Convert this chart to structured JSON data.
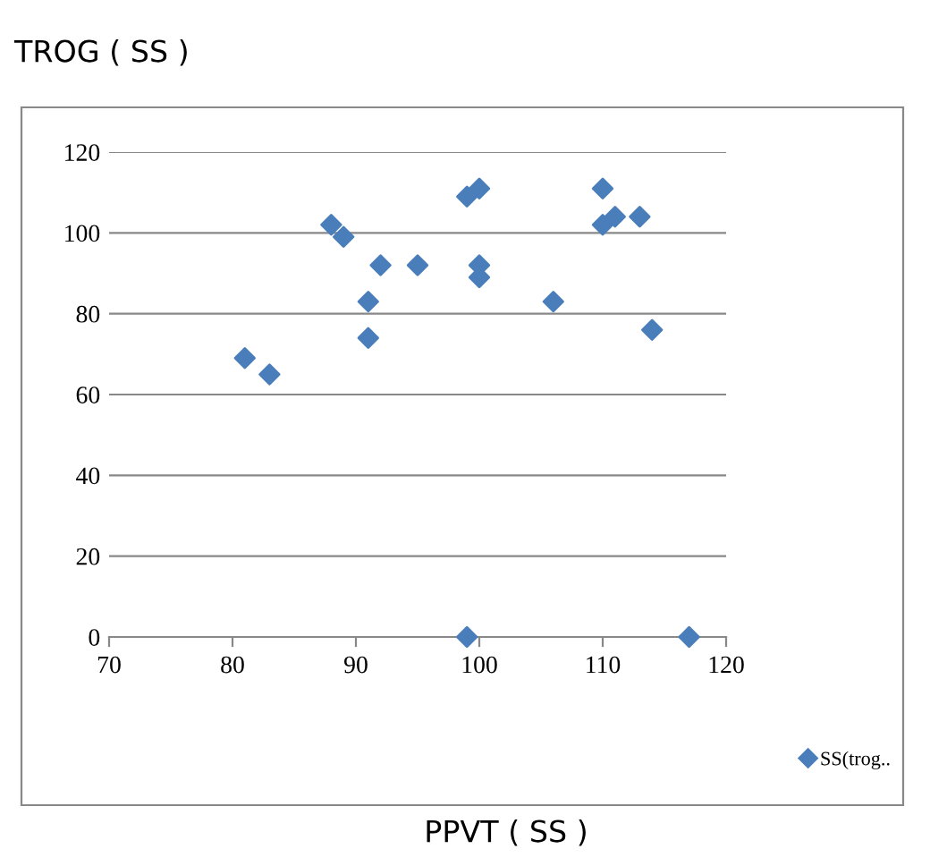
{
  "chart_data": {
    "type": "scatter",
    "title": "TROG ( SS )",
    "xlabel": "PPVT ( SS )",
    "xlim": [
      70,
      120
    ],
    "xticks": [
      70,
      80,
      90,
      100,
      110,
      120
    ],
    "ylim": [
      0,
      120
    ],
    "yticks": [
      0,
      20,
      40,
      60,
      80,
      100,
      120
    ],
    "grid": "y",
    "legend": "bottom right",
    "marker": "diamond",
    "series": [
      {
        "name": "SS(trog..",
        "color": "#4a7ebb",
        "x": [
          81,
          83,
          88,
          89,
          91,
          91,
          92,
          95,
          99,
          99,
          100,
          100,
          100,
          106,
          110,
          110,
          111,
          113,
          114,
          117
        ],
        "values": [
          69,
          65,
          102,
          99,
          83,
          74,
          92,
          92,
          109,
          0,
          111,
          92,
          89,
          83,
          111,
          102,
          104,
          104,
          76,
          0
        ]
      }
    ]
  }
}
